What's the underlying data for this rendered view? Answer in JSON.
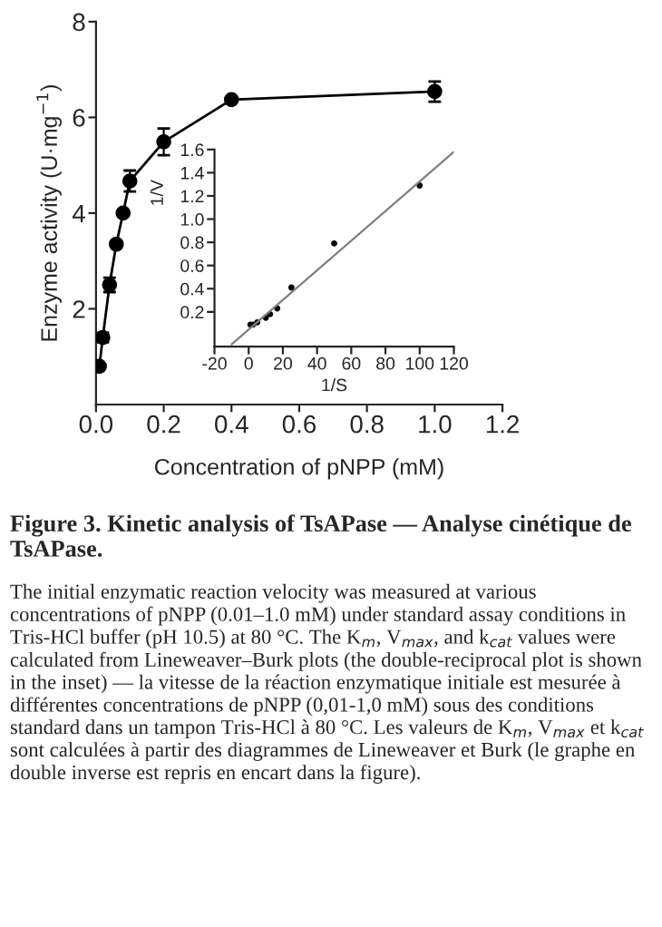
{
  "chart_data": [
    {
      "type": "line",
      "xlabel": "Concentration of pNPP (mM)",
      "ylabel": "Enzyme activity (U·mg$^{−1}$)",
      "x": [
        0.01,
        0.02,
        0.04,
        0.06,
        0.08,
        0.1,
        0.2,
        0.4,
        1.0
      ],
      "series": [
        {
          "color": "#000000",
          "values": [
            0.8,
            1.4,
            2.5,
            3.35,
            4.0,
            4.67,
            5.49,
            6.37,
            6.54
          ],
          "errors": [
            null,
            0.1,
            0.15,
            null,
            null,
            0.22,
            0.28,
            null,
            0.21
          ]
        }
      ],
      "marker": "circle",
      "line_style": "solid",
      "xlim": [
        0,
        1.2
      ],
      "xticks": [
        {
          "value": 0,
          "label": "0.0"
        },
        0.2,
        0.4,
        0.6,
        0.8,
        {
          "value": 1,
          "label": "1.0"
        },
        1.2
      ],
      "ylim": [
        0,
        8
      ],
      "yticks": [
        2,
        4,
        6,
        8
      ],
      "grid": false,
      "legend": false,
      "annotations": [
        "Figure 3. Kinetic analysis of TsAPase — Analyse cinétique de TsAPase.",
        "The initial enzymatic reaction velocity was measured at various concentrations of pNPP (0.01–1.0 mM) under standard assay conditions in Tris-HCl buffer (pH 10.5) at 80 °C. The K$_{m}$, V$_{max}$, and k$_{cat}$ values were calculated from Lineweaver–Burk plots (the double-reciprocal plot is shown in the inset) — la vitesse de la réaction enzymatique initiale est mesurée à différentes concentrations de pNPP (0,01-1,0 mM) sous des conditions standard dans un tampon Tris-HCl à 80 °C. Les valeurs de K$_{m}$, V$_{max}$ et k$_{cat}$ sont calculées à partir des diagrammes de Lineweaver et Burk (le graphe en double inverse est repris en encart dans la figure)."
      ]
    },
    {
      "type": "scatter",
      "xlabel": "1/S",
      "ylabel": "1/V",
      "series": [
        {
          "type": "scatter",
          "marker": "circle",
          "color": "#000000",
          "x": [
            1,
            2.5,
            5,
            10,
            12.5,
            16.7,
            25,
            50,
            100
          ],
          "values": [
            0.09,
            0.09,
            0.11,
            0.15,
            0.18,
            0.23,
            0.41,
            0.79,
            1.29
          ]
        },
        {
          "type": "line",
          "marker": "none",
          "color": "#808080",
          "x": [
            -10,
            120
          ],
          "values": [
            -0.08,
            1.58
          ]
        }
      ],
      "xlim": [
        -20,
        120
      ],
      "xticks": [
        -20,
        0,
        20,
        40,
        60,
        80,
        100,
        120
      ],
      "ylim": [
        -0.1,
        1.6
      ],
      "yticks": [
        0.2,
        0.4,
        0.6,
        0.8,
        {
          "value": 1,
          "label": "1.0"
        },
        1.2,
        1.4,
        1.6
      ],
      "grid": false,
      "legend": false
    }
  ]
}
